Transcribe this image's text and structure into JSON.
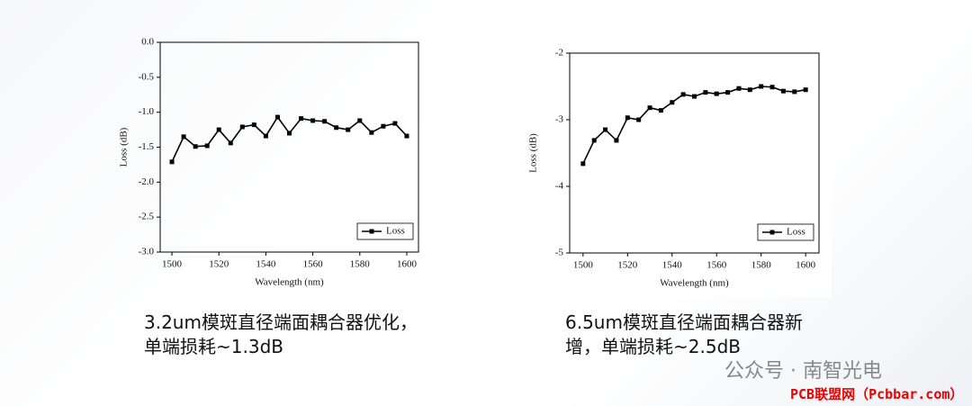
{
  "chart_data": [
    {
      "type": "line",
      "xlabel": "Wavelength (nm)",
      "ylabel": "Loss (dB)",
      "x": [
        1500,
        1505,
        1510,
        1515,
        1520,
        1525,
        1530,
        1535,
        1540,
        1545,
        1550,
        1555,
        1560,
        1565,
        1570,
        1575,
        1580,
        1585,
        1590,
        1595,
        1600
      ],
      "series": [
        {
          "name": "Loss",
          "color": "#000000",
          "values": [
            -1.71,
            -1.35,
            -1.49,
            -1.48,
            -1.25,
            -1.44,
            -1.21,
            -1.18,
            -1.34,
            -1.07,
            -1.3,
            -1.09,
            -1.12,
            -1.13,
            -1.22,
            -1.25,
            -1.12,
            -1.29,
            -1.2,
            -1.16,
            -1.34
          ]
        }
      ],
      "xlim": [
        1495,
        1605
      ],
      "xticks": [
        1500,
        1520,
        1540,
        1560,
        1580,
        1600
      ],
      "ylim": [
        -3,
        0
      ],
      "yticks": [
        {
          "value": 0,
          "label": "0.0"
        },
        -0.5,
        {
          "value": -1,
          "label": "-1.0"
        },
        -1.5,
        {
          "value": -2,
          "label": "-2.0"
        },
        -2.5,
        {
          "value": -3,
          "label": "-3.0"
        }
      ],
      "legend": "lower right",
      "grid": false
    },
    {
      "type": "line",
      "xlabel": "Wavelength (nm)",
      "ylabel": "Loss (dB)",
      "x": [
        1500,
        1505,
        1510,
        1515,
        1520,
        1525,
        1530,
        1535,
        1540,
        1545,
        1550,
        1555,
        1560,
        1565,
        1570,
        1575,
        1580,
        1585,
        1590,
        1595,
        1600
      ],
      "series": [
        {
          "name": "Loss",
          "color": "#000000",
          "values": [
            -3.66,
            -3.31,
            -3.15,
            -3.31,
            -2.97,
            -3.0,
            -2.82,
            -2.86,
            -2.74,
            -2.62,
            -2.65,
            -2.59,
            -2.61,
            -2.59,
            -2.53,
            -2.55,
            -2.5,
            -2.51,
            -2.57,
            -2.58,
            -2.55
          ]
        }
      ],
      "xlim": [
        1494,
        1606
      ],
      "xticks": [
        1500,
        1520,
        1540,
        1560,
        1580,
        1600
      ],
      "ylim": [
        -5,
        -2
      ],
      "yticks": [
        -2,
        -3,
        -4,
        -5
      ],
      "legend": "lower right",
      "grid": false
    }
  ],
  "captions": [
    [
      "3.2um模斑直径端面耦合器优化，",
      "单端损耗~1.3dB"
    ],
    [
      "6.5um模斑直径端面耦合器新",
      "增，单端损耗~2.5dB"
    ]
  ],
  "watermark": "公众号 · 南智光电",
  "source": "PCB联盟网（Pcbbar.com）"
}
